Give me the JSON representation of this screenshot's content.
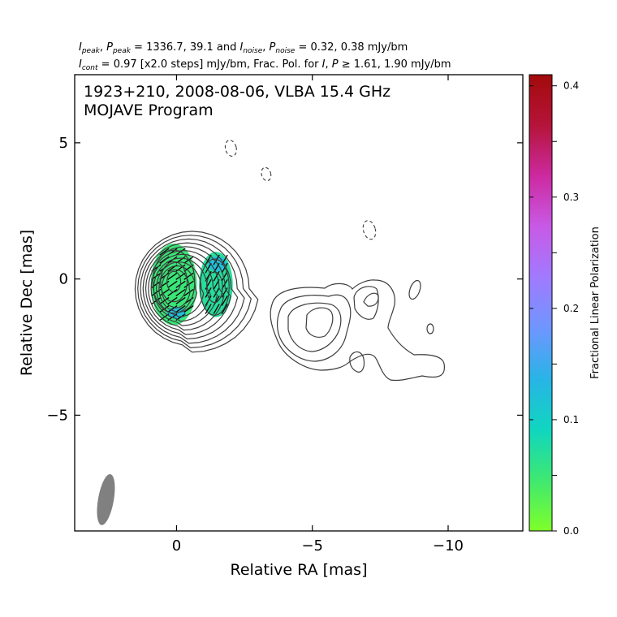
{
  "header": {
    "line1": {
      "label_a": "I",
      "sub_a": "peak",
      "sep1": ", ",
      "label_b": "P",
      "sub_b": "peak",
      "eq_values": " = 1336.7, 39.1 and ",
      "label_c": "I",
      "sub_c": "noise",
      "sep2": ", ",
      "label_d": "P",
      "sub_d": "noise",
      "tail": " = 0.32, 0.38 mJy/bm"
    },
    "line2": {
      "label_a": "I",
      "sub_a": "cont",
      "mid": " = 0.97 [x2.0 steps] mJy/bm, Frac. Pol. for ",
      "label_b": "I",
      "sep": ", ",
      "label_c": "P",
      "tail": " ≥ 1.61, 1.90 mJy/bm"
    }
  },
  "chart_data": {
    "type": "contour",
    "title": "1923+210, 2008-08-06, VLBA 15.4 GHz",
    "subtitle": "MOJAVE Program",
    "xlabel": "Relative RA [mas]",
    "ylabel": "Relative Dec [mas]",
    "xlim": [
      3.75,
      -12.75
    ],
    "ylim": [
      -9.25,
      7.5
    ],
    "x_ticks": [
      {
        "value": 0,
        "label": "0"
      },
      {
        "value": -5,
        "label": "−5"
      },
      {
        "value": -10,
        "label": "−10"
      }
    ],
    "y_ticks": [
      {
        "value": 5,
        "label": "5"
      },
      {
        "value": 0,
        "label": "0"
      },
      {
        "value": -5,
        "label": "−5"
      }
    ],
    "grid": false,
    "colorbar": {
      "label": "Fractional Linear Polarization",
      "range": [
        0.0,
        0.41
      ],
      "ticks": [
        {
          "value": 0.0,
          "label": "0.0"
        },
        {
          "value": 0.1,
          "label": "0.1"
        },
        {
          "value": 0.2,
          "label": "0.2"
        },
        {
          "value": 0.3,
          "label": "0.3"
        },
        {
          "value": 0.4,
          "label": "0.4"
        }
      ],
      "minor_ticks": [
        0.05,
        0.15,
        0.25,
        0.35
      ],
      "colors": [
        "#7fff2a",
        "#3fe870",
        "#10d6c0",
        "#28b4e6",
        "#6f96ff",
        "#a07aff",
        "#c85ae6",
        "#cc2aa0",
        "#b5143a",
        "#a20a0a"
      ]
    },
    "components": [
      {
        "name": "core",
        "x": 0.1,
        "y": -0.1,
        "rx": 1.0,
        "ry": 1.5
      },
      {
        "name": "knot",
        "x": -1.4,
        "y": -0.3,
        "rx": 0.65,
        "ry": 1.25
      }
    ],
    "polarization_regions": [
      {
        "x": 0.1,
        "y": -0.2,
        "rx": 0.85,
        "ry": 1.5,
        "frac": 0.05
      },
      {
        "x": -1.45,
        "y": -0.2,
        "rx": 0.62,
        "ry": 1.2,
        "frac": 0.07
      }
    ],
    "negative_contours": [
      {
        "x": -2.0,
        "y": 4.8,
        "rx": 0.2,
        "ry": 0.3
      },
      {
        "x": -3.3,
        "y": 3.85,
        "rx": 0.17,
        "ry": 0.25
      },
      {
        "x": -7.1,
        "y": 1.8,
        "rx": 0.22,
        "ry": 0.35
      }
    ],
    "beam": {
      "x": 2.6,
      "y": -8.1,
      "major": 1.15,
      "minor": 0.55,
      "pa_deg": -10
    },
    "contour_base_mJy": 0.97,
    "contour_step": 2.0
  }
}
